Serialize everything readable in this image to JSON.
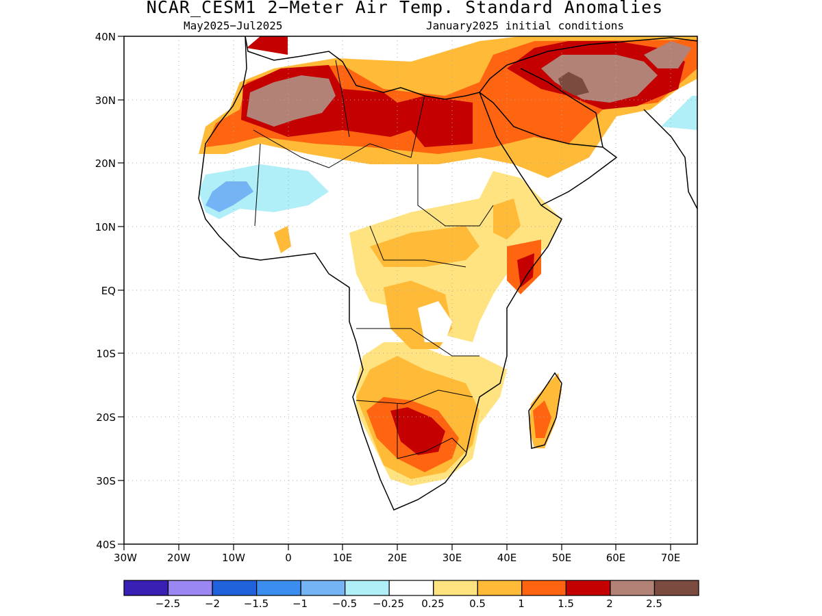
{
  "title": "NCAR_CESM1 2−Meter Air Temp. Standard Anomalies",
  "subtitle_left": "May2025−Jul2025",
  "subtitle_right": "January2025 initial conditions",
  "lat_labels": [
    "40N",
    "30N",
    "20N",
    "10N",
    "EQ",
    "10S",
    "20S",
    "30S",
    "40S"
  ],
  "lon_labels": [
    "30W",
    "20W",
    "10W",
    "0",
    "10E",
    "20E",
    "30E",
    "40E",
    "50E",
    "60E",
    "70E"
  ],
  "colorbar": {
    "colors": [
      "#3a1fb4",
      "#9b86f2",
      "#1f62dc",
      "#3b8ef0",
      "#74b4f4",
      "#b0eef8",
      "#ffffff",
      "#ffe380",
      "#ffbb38",
      "#ff6510",
      "#c40000",
      "#b18275",
      "#7a4b3e"
    ],
    "labels": [
      "−2.5",
      "−2",
      "−1.5",
      "−1",
      "−0.5",
      "−0.25",
      "0.25",
      "0.5",
      "1",
      "1.5",
      "2",
      "2.5"
    ]
  }
}
